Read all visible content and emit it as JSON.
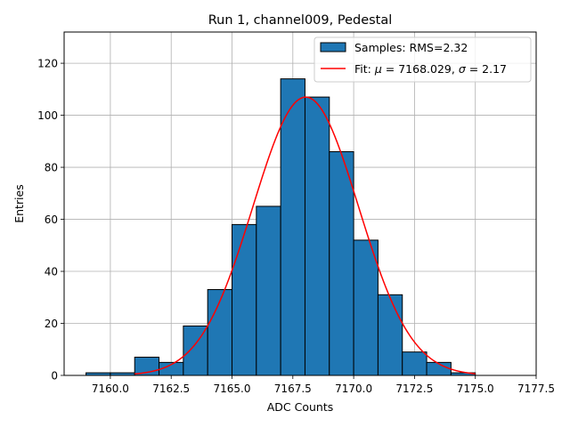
{
  "chart_data": {
    "type": "bar",
    "title": "Run 1, channel009, Pedestal",
    "xlabel": "ADC Counts",
    "ylabel": "Entries",
    "xlim": [
      7158.1,
      7177.5
    ],
    "ylim": [
      0,
      132
    ],
    "grid": true,
    "legend_position": "top-right",
    "x_ticks": [
      7160.0,
      7162.5,
      7165.0,
      7167.5,
      7170.0,
      7172.5,
      7175.0,
      7177.5
    ],
    "x_tick_labels": [
      "7160.0",
      "7162.5",
      "7165.0",
      "7167.5",
      "7170.0",
      "7172.5",
      "7175.0",
      "7177.5"
    ],
    "y_ticks": [
      0,
      20,
      40,
      60,
      80,
      100,
      120
    ],
    "y_tick_labels": [
      "0",
      "20",
      "40",
      "60",
      "80",
      "100",
      "120"
    ],
    "histogram": {
      "name": "Samples: RMS=2.32",
      "color": "#1f77b4",
      "edge_color": "#000000",
      "bin_edges": [
        7159.0,
        7160.0,
        7161.0,
        7162.0,
        7163.0,
        7164.0,
        7165.0,
        7166.0,
        7167.0,
        7168.0,
        7169.0,
        7170.0,
        7171.0,
        7172.0,
        7173.0,
        7174.0,
        7175.0
      ],
      "counts": [
        1,
        1,
        7,
        5,
        19,
        33,
        58,
        65,
        114,
        107,
        86,
        52,
        31,
        9,
        5,
        1
      ]
    },
    "fit": {
      "name_prefix": "Fit: ",
      "mu_symbol": "μ",
      "mu_text": " = 7168.029, ",
      "sigma_symbol": "σ",
      "sigma_text": " = 2.17",
      "color": "#ff0000",
      "mu": 7168.029,
      "sigma": 2.17,
      "amplitude": 107,
      "x_range": [
        7161.0,
        7175.0
      ]
    }
  }
}
